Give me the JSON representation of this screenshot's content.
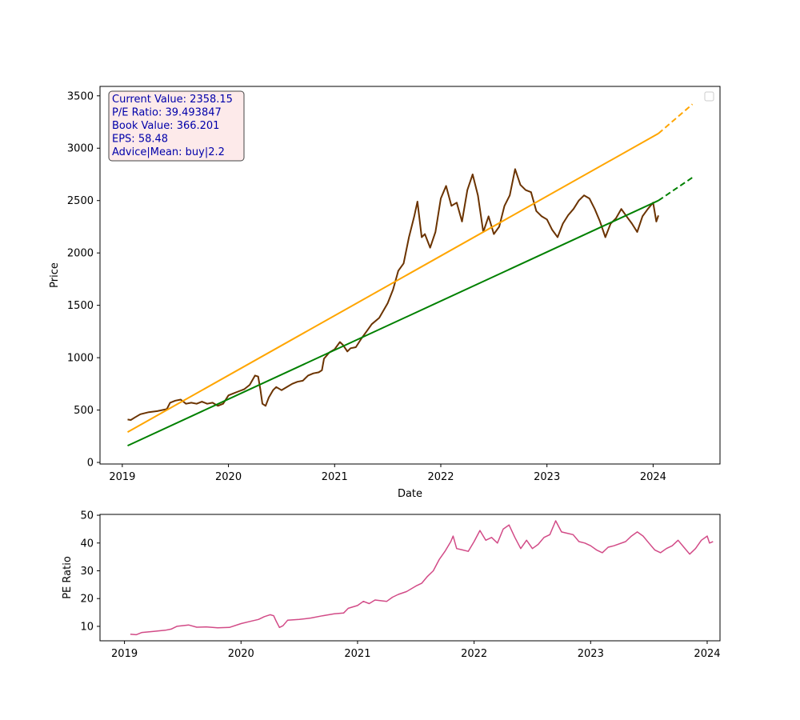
{
  "chart_data": [
    {
      "type": "line",
      "xlabel": "Date",
      "ylabel": "Price",
      "x_ticks": [
        "2019",
        "2020",
        "2021",
        "2022",
        "2023",
        "2024"
      ],
      "y_ticks": [
        0,
        500,
        1000,
        1500,
        2000,
        2500,
        3000,
        3500
      ],
      "xlim": [
        2018.79,
        2024.63
      ],
      "ylim": [
        -15,
        3590
      ],
      "grid": false,
      "legend": {
        "placement": "top-right",
        "entries": []
      },
      "info_box": {
        "placement": "top-left",
        "lines": [
          "Current Value: 2358.15",
          "P/E Ratio: 39.493847",
          "Book Value: 366.201",
          "EPS: 58.48",
          "Advice|Mean: buy|2.2"
        ],
        "text_color": "#0000aa",
        "background": "#fdeaea"
      },
      "series": [
        {
          "color": "#6b3300",
          "style": "solid",
          "points": [
            [
              2019.05,
              410
            ],
            [
              2019.08,
              405
            ],
            [
              2019.12,
              430
            ],
            [
              2019.17,
              460
            ],
            [
              2019.25,
              480
            ],
            [
              2019.33,
              490
            ],
            [
              2019.42,
              510
            ],
            [
              2019.45,
              570
            ],
            [
              2019.5,
              590
            ],
            [
              2019.55,
              600
            ],
            [
              2019.6,
              560
            ],
            [
              2019.65,
              570
            ],
            [
              2019.7,
              560
            ],
            [
              2019.75,
              580
            ],
            [
              2019.8,
              560
            ],
            [
              2019.85,
              570
            ],
            [
              2019.9,
              540
            ],
            [
              2019.95,
              560
            ],
            [
              2020.0,
              640
            ],
            [
              2020.05,
              660
            ],
            [
              2020.1,
              680
            ],
            [
              2020.15,
              700
            ],
            [
              2020.2,
              740
            ],
            [
              2020.25,
              830
            ],
            [
              2020.28,
              820
            ],
            [
              2020.3,
              700
            ],
            [
              2020.32,
              560
            ],
            [
              2020.35,
              540
            ],
            [
              2020.38,
              620
            ],
            [
              2020.42,
              690
            ],
            [
              2020.45,
              720
            ],
            [
              2020.5,
              690
            ],
            [
              2020.55,
              720
            ],
            [
              2020.6,
              750
            ],
            [
              2020.65,
              770
            ],
            [
              2020.7,
              780
            ],
            [
              2020.75,
              830
            ],
            [
              2020.8,
              850
            ],
            [
              2020.85,
              860
            ],
            [
              2020.88,
              880
            ],
            [
              2020.9,
              990
            ],
            [
              2020.95,
              1050
            ],
            [
              2021.0,
              1080
            ],
            [
              2021.05,
              1150
            ],
            [
              2021.08,
              1120
            ],
            [
              2021.12,
              1060
            ],
            [
              2021.15,
              1090
            ],
            [
              2021.2,
              1100
            ],
            [
              2021.25,
              1180
            ],
            [
              2021.3,
              1250
            ],
            [
              2021.35,
              1320
            ],
            [
              2021.42,
              1380
            ],
            [
              2021.5,
              1520
            ],
            [
              2021.55,
              1650
            ],
            [
              2021.6,
              1830
            ],
            [
              2021.65,
              1900
            ],
            [
              2021.7,
              2150
            ],
            [
              2021.75,
              2350
            ],
            [
              2021.78,
              2490
            ],
            [
              2021.82,
              2150
            ],
            [
              2021.85,
              2180
            ],
            [
              2021.9,
              2050
            ],
            [
              2021.95,
              2200
            ],
            [
              2022.0,
              2520
            ],
            [
              2022.05,
              2640
            ],
            [
              2022.1,
              2450
            ],
            [
              2022.15,
              2480
            ],
            [
              2022.2,
              2300
            ],
            [
              2022.25,
              2600
            ],
            [
              2022.3,
              2750
            ],
            [
              2022.35,
              2550
            ],
            [
              2022.4,
              2200
            ],
            [
              2022.45,
              2350
            ],
            [
              2022.5,
              2180
            ],
            [
              2022.55,
              2250
            ],
            [
              2022.6,
              2450
            ],
            [
              2022.65,
              2550
            ],
            [
              2022.7,
              2800
            ],
            [
              2022.75,
              2650
            ],
            [
              2022.8,
              2600
            ],
            [
              2022.85,
              2580
            ],
            [
              2022.9,
              2400
            ],
            [
              2022.95,
              2350
            ],
            [
              2023.0,
              2320
            ],
            [
              2023.05,
              2220
            ],
            [
              2023.1,
              2150
            ],
            [
              2023.15,
              2280
            ],
            [
              2023.2,
              2360
            ],
            [
              2023.25,
              2420
            ],
            [
              2023.3,
              2500
            ],
            [
              2023.35,
              2550
            ],
            [
              2023.4,
              2520
            ],
            [
              2023.45,
              2420
            ],
            [
              2023.5,
              2300
            ],
            [
              2023.55,
              2150
            ],
            [
              2023.6,
              2280
            ],
            [
              2023.65,
              2330
            ],
            [
              2023.7,
              2420
            ],
            [
              2023.75,
              2350
            ],
            [
              2023.8,
              2280
            ],
            [
              2023.85,
              2200
            ],
            [
              2023.9,
              2350
            ],
            [
              2023.95,
              2420
            ],
            [
              2024.0,
              2480
            ],
            [
              2024.03,
              2300
            ],
            [
              2024.05,
              2358
            ]
          ]
        },
        {
          "color": "#ffa500",
          "style": "solid",
          "points": [
            [
              2019.05,
              290
            ],
            [
              2024.05,
              3140
            ]
          ]
        },
        {
          "color": "#ffa500",
          "style": "dashed",
          "points": [
            [
              2024.05,
              3140
            ],
            [
              2024.37,
              3420
            ]
          ]
        },
        {
          "color": "#008000",
          "style": "solid",
          "points": [
            [
              2019.05,
              160
            ],
            [
              2024.05,
              2500
            ]
          ]
        },
        {
          "color": "#008000",
          "style": "dashed",
          "points": [
            [
              2024.05,
              2500
            ],
            [
              2024.37,
              2720
            ]
          ]
        }
      ]
    },
    {
      "type": "line",
      "xlabel": "",
      "ylabel": "PE Ratio",
      "x_ticks": [
        "2019",
        "2020",
        "2021",
        "2022",
        "2023",
        "2024"
      ],
      "y_ticks": [
        10,
        20,
        30,
        40,
        50
      ],
      "xlim": [
        2018.79,
        2024.11
      ],
      "ylim": [
        4.8,
        50.3
      ],
      "grid": false,
      "series": [
        {
          "color": "#d24b87",
          "style": "solid",
          "points": [
            [
              2019.05,
              7.2
            ],
            [
              2019.1,
              7.0
            ],
            [
              2019.15,
              7.8
            ],
            [
              2019.25,
              8.2
            ],
            [
              2019.35,
              8.6
            ],
            [
              2019.4,
              9.0
            ],
            [
              2019.45,
              10.0
            ],
            [
              2019.55,
              10.5
            ],
            [
              2019.62,
              9.7
            ],
            [
              2019.7,
              9.8
            ],
            [
              2019.8,
              9.5
            ],
            [
              2019.9,
              9.6
            ],
            [
              2020.0,
              11.0
            ],
            [
              2020.08,
              11.8
            ],
            [
              2020.15,
              12.5
            ],
            [
              2020.2,
              13.5
            ],
            [
              2020.25,
              14.2
            ],
            [
              2020.28,
              13.8
            ],
            [
              2020.3,
              12.0
            ],
            [
              2020.33,
              9.6
            ],
            [
              2020.36,
              10.2
            ],
            [
              2020.4,
              12.2
            ],
            [
              2020.5,
              12.5
            ],
            [
              2020.6,
              13.0
            ],
            [
              2020.7,
              13.8
            ],
            [
              2020.8,
              14.5
            ],
            [
              2020.88,
              14.8
            ],
            [
              2020.92,
              16.5
            ],
            [
              2021.0,
              17.5
            ],
            [
              2021.05,
              19.0
            ],
            [
              2021.1,
              18.2
            ],
            [
              2021.15,
              19.5
            ],
            [
              2021.25,
              19.0
            ],
            [
              2021.3,
              20.5
            ],
            [
              2021.35,
              21.5
            ],
            [
              2021.42,
              22.5
            ],
            [
              2021.5,
              24.5
            ],
            [
              2021.55,
              25.5
            ],
            [
              2021.6,
              28.0
            ],
            [
              2021.65,
              30.0
            ],
            [
              2021.7,
              34.0
            ],
            [
              2021.75,
              37.0
            ],
            [
              2021.8,
              40.5
            ],
            [
              2021.82,
              42.5
            ],
            [
              2021.85,
              38.0
            ],
            [
              2021.9,
              37.5
            ],
            [
              2021.95,
              37.0
            ],
            [
              2022.0,
              40.5
            ],
            [
              2022.05,
              44.5
            ],
            [
              2022.1,
              41.0
            ],
            [
              2022.15,
              42.0
            ],
            [
              2022.2,
              40.0
            ],
            [
              2022.25,
              45.0
            ],
            [
              2022.3,
              46.5
            ],
            [
              2022.35,
              42.0
            ],
            [
              2022.4,
              38.0
            ],
            [
              2022.45,
              41.0
            ],
            [
              2022.5,
              38.0
            ],
            [
              2022.55,
              39.5
            ],
            [
              2022.6,
              42.0
            ],
            [
              2022.65,
              43.0
            ],
            [
              2022.7,
              48.0
            ],
            [
              2022.75,
              44.0
            ],
            [
              2022.8,
              43.5
            ],
            [
              2022.85,
              43.0
            ],
            [
              2022.9,
              40.5
            ],
            [
              2022.95,
              40.0
            ],
            [
              2023.0,
              39.0
            ],
            [
              2023.05,
              37.5
            ],
            [
              2023.1,
              36.5
            ],
            [
              2023.15,
              38.5
            ],
            [
              2023.2,
              39.0
            ],
            [
              2023.3,
              40.5
            ],
            [
              2023.35,
              42.5
            ],
            [
              2023.4,
              44.0
            ],
            [
              2023.45,
              42.5
            ],
            [
              2023.5,
              40.0
            ],
            [
              2023.55,
              37.5
            ],
            [
              2023.6,
              36.5
            ],
            [
              2023.65,
              38.0
            ],
            [
              2023.7,
              39.0
            ],
            [
              2023.75,
              41.0
            ],
            [
              2023.8,
              38.5
            ],
            [
              2023.85,
              36.0
            ],
            [
              2023.9,
              38.0
            ],
            [
              2023.95,
              41.0
            ],
            [
              2024.0,
              42.5
            ],
            [
              2024.02,
              40.0
            ],
            [
              2024.05,
              40.5
            ]
          ]
        }
      ]
    }
  ]
}
